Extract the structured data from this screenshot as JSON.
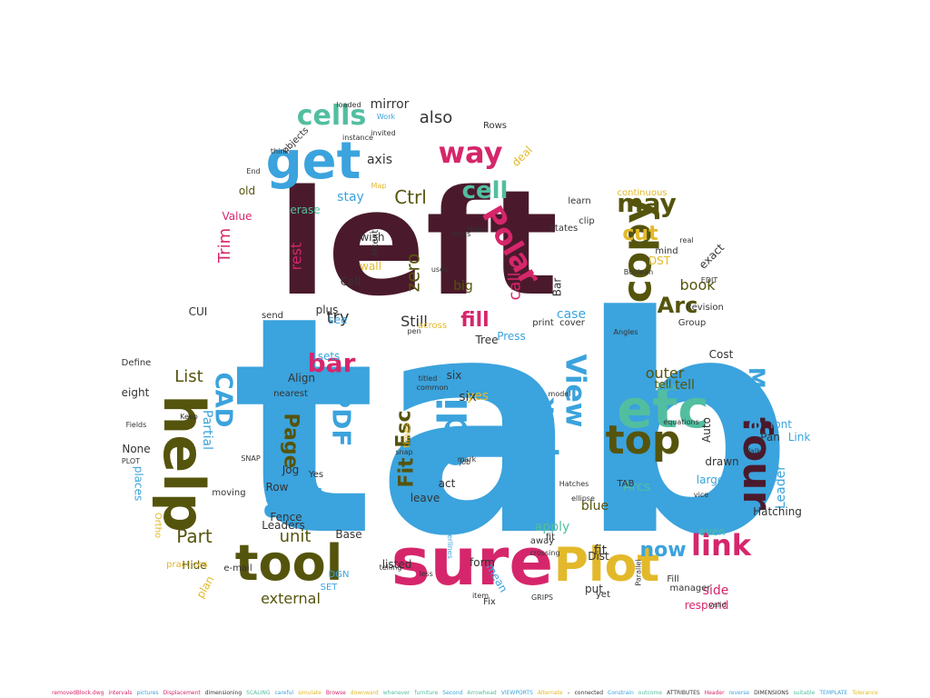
{
  "cloud": {
    "colors": {
      "maroon": "#4a1a2c",
      "blue": "#3ba3dd",
      "olive": "#55540d",
      "pink": "#d6266b",
      "teal": "#52bea0",
      "yellow": "#e3b92a",
      "dark": "#333333"
    },
    "words": [
      {
        "t": "tab",
        "c": "blue"
      },
      {
        "t": "left",
        "c": "maroon"
      },
      {
        "t": "sure",
        "c": "pink"
      },
      {
        "t": "Plot",
        "c": "yellow"
      },
      {
        "t": "help",
        "c": "olive"
      },
      {
        "t": "tool",
        "c": "olive"
      },
      {
        "t": "get",
        "c": "blue"
      },
      {
        "t": "etc",
        "c": "teal"
      },
      {
        "t": "top",
        "c": "olive"
      },
      {
        "t": "copy",
        "c": "olive"
      },
      {
        "t": "four",
        "c": "maroon"
      },
      {
        "t": "edit",
        "c": "blue"
      },
      {
        "t": "ask",
        "c": "blue"
      },
      {
        "t": "way",
        "c": "pink"
      },
      {
        "t": "cells",
        "c": "teal"
      },
      {
        "t": "View",
        "c": "blue"
      },
      {
        "t": "Polar",
        "c": "pink"
      },
      {
        "t": "pick",
        "c": "blue"
      },
      {
        "t": "PDF",
        "c": "blue"
      },
      {
        "t": "link",
        "c": "pink"
      },
      {
        "t": "may",
        "c": "olive"
      },
      {
        "t": "bar",
        "c": "pink"
      },
      {
        "t": "CAD",
        "c": "blue"
      },
      {
        "t": "Page",
        "c": "olive"
      },
      {
        "t": "cell",
        "c": "teal"
      },
      {
        "t": "Arc",
        "c": "olive"
      },
      {
        "t": "now",
        "c": "blue"
      },
      {
        "t": "Part",
        "c": "olive"
      },
      {
        "t": "Fit",
        "c": "olive"
      },
      {
        "t": "Esc",
        "c": "olive"
      },
      {
        "t": "cut",
        "c": "yellow"
      },
      {
        "t": "zero",
        "c": "olive"
      },
      {
        "t": "also",
        "c": "dark"
      },
      {
        "t": "Ctrl",
        "c": "olive"
      },
      {
        "t": "fill",
        "c": "pink"
      },
      {
        "t": "unit",
        "c": "olive"
      },
      {
        "t": "Move",
        "c": "blue"
      },
      {
        "t": "book",
        "c": "olive"
      },
      {
        "t": "List",
        "c": "olive"
      },
      {
        "t": "Trim",
        "c": "pink"
      },
      {
        "t": "Size",
        "c": "blue"
      },
      {
        "t": "mirror",
        "c": "dark"
      },
      {
        "t": "external",
        "c": "olive"
      },
      {
        "t": "outer",
        "c": "olive"
      },
      {
        "t": "side",
        "c": "pink"
      },
      {
        "t": "blue",
        "c": "olive"
      },
      {
        "t": "Arcs",
        "c": "teal"
      },
      {
        "t": "Leader",
        "c": "blue"
      },
      {
        "t": "Still",
        "c": "dark"
      },
      {
        "t": "rest",
        "c": "pink"
      },
      {
        "t": "call",
        "c": "pink"
      },
      {
        "t": "try",
        "c": "dark"
      },
      {
        "t": "Cell",
        "c": "dark"
      },
      {
        "t": "stay",
        "c": "blue"
      },
      {
        "t": "leave",
        "c": "dark"
      },
      {
        "t": "apply",
        "c": "teal"
      },
      {
        "t": "Base",
        "c": "dark"
      },
      {
        "t": "drawn",
        "c": "dark"
      },
      {
        "t": "Hide",
        "c": "olive"
      },
      {
        "t": "places",
        "c": "blue"
      },
      {
        "t": "Partial",
        "c": "blue"
      },
      {
        "t": "Row",
        "c": "dark"
      },
      {
        "t": "Box",
        "c": "teal"
      },
      {
        "t": "tell",
        "c": "olive"
      },
      {
        "t": "Cost",
        "c": "dark"
      },
      {
        "t": "case",
        "c": "blue"
      },
      {
        "t": "Auto",
        "c": "dark"
      },
      {
        "t": "big",
        "c": "olive"
      },
      {
        "t": "fit",
        "c": "dark"
      },
      {
        "t": "put",
        "c": "dark"
      },
      {
        "t": "mean",
        "c": "blue"
      },
      {
        "t": "six",
        "c": "dark"
      },
      {
        "t": "old",
        "c": "olive"
      },
      {
        "t": "erase",
        "c": "teal"
      },
      {
        "t": "wall",
        "c": "yellow"
      },
      {
        "t": "CUI",
        "c": "dark"
      },
      {
        "t": "DST",
        "c": "yellow"
      },
      {
        "t": "axis",
        "c": "dark"
      },
      {
        "t": "deal",
        "c": "yellow"
      },
      {
        "t": "eight",
        "c": "dark"
      },
      {
        "t": "None",
        "c": "dark"
      },
      {
        "t": "plan",
        "c": "yellow"
      },
      {
        "t": "Jog",
        "c": "dark"
      },
      {
        "t": "Fence",
        "c": "dark"
      },
      {
        "t": "Link",
        "c": "blue"
      },
      {
        "t": "Pan",
        "c": "dark"
      },
      {
        "t": "even",
        "c": "teal"
      },
      {
        "t": "Hatching",
        "c": "dark"
      },
      {
        "t": "respond",
        "c": "pink"
      },
      {
        "t": "Value",
        "c": "pink"
      },
      {
        "t": "Define",
        "c": "dark"
      },
      {
        "t": "Preview",
        "c": "blue"
      },
      {
        "t": "Leaders",
        "c": "dark"
      },
      {
        "t": "act",
        "c": "dark"
      },
      {
        "t": "listed",
        "c": "dark"
      },
      {
        "t": "form",
        "c": "dark"
      },
      {
        "t": "yes",
        "c": "yellow"
      },
      {
        "t": "sets",
        "c": "blue"
      },
      {
        "t": "see",
        "c": "blue"
      },
      {
        "t": "plus",
        "c": "dark"
      },
      {
        "t": "wish",
        "c": "dark"
      },
      {
        "t": "Align",
        "c": "dark"
      },
      {
        "t": "Yes",
        "c": "dark"
      },
      {
        "t": "moving",
        "c": "dark"
      },
      {
        "t": "font",
        "c": "blue"
      },
      {
        "t": "Group",
        "c": "dark"
      },
      {
        "t": "Revision",
        "c": "dark"
      },
      {
        "t": "Dist",
        "c": "dark"
      },
      {
        "t": "away",
        "c": "dark"
      },
      {
        "t": "Fix",
        "c": "dark"
      },
      {
        "t": "e-mail",
        "c": "dark"
      },
      {
        "t": "practices",
        "c": "yellow"
      },
      {
        "t": "send",
        "c": "dark"
      },
      {
        "t": "yet",
        "c": "dark"
      },
      {
        "t": "Bar",
        "c": "dark"
      },
      {
        "t": "nearest",
        "c": "dark"
      },
      {
        "t": "six",
        "c": "dark"
      },
      {
        "t": "tell",
        "c": "olive"
      },
      {
        "t": "Rows",
        "c": "dark"
      },
      {
        "t": "Fill",
        "c": "dark"
      },
      {
        "t": "TAB",
        "c": "dark"
      },
      {
        "t": "Tree",
        "c": "dark"
      },
      {
        "t": "Press",
        "c": "blue"
      },
      {
        "t": "large",
        "c": "blue"
      },
      {
        "t": "continuous",
        "c": "yellow"
      },
      {
        "t": "exact",
        "c": "dark"
      },
      {
        "t": "mind",
        "c": "dark"
      },
      {
        "t": "clip",
        "c": "dark"
      },
      {
        "t": "print",
        "c": "dark"
      },
      {
        "t": "across",
        "c": "yellow"
      },
      {
        "t": "cover",
        "c": "dark"
      },
      {
        "t": "DGN",
        "c": "blue"
      },
      {
        "t": "SET",
        "c": "blue"
      },
      {
        "t": "SNAP",
        "c": "dark"
      },
      {
        "t": "PLOT",
        "c": "dark"
      },
      {
        "t": "Ortho",
        "c": "yellow"
      },
      {
        "t": "vice",
        "c": "dark"
      },
      {
        "t": "manager",
        "c": "dark"
      },
      {
        "t": "valid",
        "c": "dark"
      },
      {
        "t": "fit",
        "c": "dark"
      },
      {
        "t": "Work",
        "c": "blue"
      },
      {
        "t": "loaded",
        "c": "dark"
      },
      {
        "t": "instance",
        "c": "dark"
      },
      {
        "t": "invited",
        "c": "dark"
      },
      {
        "t": "objects",
        "c": "dark"
      },
      {
        "t": "Notes",
        "c": "dark"
      },
      {
        "t": "Map",
        "c": "yellow"
      },
      {
        "t": "Mtext",
        "c": "dark"
      },
      {
        "t": "states",
        "c": "dark"
      },
      {
        "t": "learn",
        "c": "dark"
      },
      {
        "t": "Boolean",
        "c": "dark"
      },
      {
        "t": "GRIPS",
        "c": "dark"
      },
      {
        "t": "Hatches",
        "c": "dark"
      },
      {
        "t": "equations",
        "c": "dark"
      },
      {
        "t": "Angles",
        "c": "dark"
      },
      {
        "t": "Walk",
        "c": "dark"
      },
      {
        "t": "crossing",
        "c": "dark"
      },
      {
        "t": "telling",
        "c": "dark"
      },
      {
        "t": "ellipse",
        "c": "dark"
      },
      {
        "t": "model",
        "c": "dark"
      },
      {
        "t": "titled",
        "c": "dark"
      },
      {
        "t": "common",
        "c": "dark"
      },
      {
        "t": "times",
        "c": "yellow"
      },
      {
        "t": "snap",
        "c": "dark"
      },
      {
        "t": "job",
        "c": "dark"
      },
      {
        "t": "mark",
        "c": "dark"
      },
      {
        "t": "icons",
        "c": "dark"
      },
      {
        "t": "uses",
        "c": "dark"
      },
      {
        "t": "pen",
        "c": "dark"
      },
      {
        "t": "Keep",
        "c": "dark"
      },
      {
        "t": "Centerlines",
        "c": "blue"
      },
      {
        "t": "item",
        "c": "dark"
      },
      {
        "t": "less",
        "c": "dark"
      },
      {
        "t": "Parallel",
        "c": "dark"
      },
      {
        "t": "EDIT",
        "c": "dark"
      },
      {
        "t": "real",
        "c": "dark"
      },
      {
        "t": "Fields",
        "c": "dark"
      },
      {
        "t": "think",
        "c": "dark"
      },
      {
        "t": "End",
        "c": "dark"
      }
    ]
  },
  "footer_words": [
    {
      "t": "removedBlock.dwg",
      "c": "pink"
    },
    {
      "t": "intervals",
      "c": "pink"
    },
    {
      "t": "pictures",
      "c": "blue"
    },
    {
      "t": "Displacement",
      "c": "pink"
    },
    {
      "t": "dimensioning",
      "c": "dark"
    },
    {
      "t": "SCALING",
      "c": "teal"
    },
    {
      "t": "careful",
      "c": "blue"
    },
    {
      "t": "simulate",
      "c": "yellow"
    },
    {
      "t": "Browse",
      "c": "pink"
    },
    {
      "t": "downward",
      "c": "yellow"
    },
    {
      "t": "whenever",
      "c": "teal"
    },
    {
      "t": "furniture",
      "c": "teal"
    },
    {
      "t": "Second",
      "c": "blue"
    },
    {
      "t": "Arrowhead",
      "c": "teal"
    },
    {
      "t": "VIEWPORTS",
      "c": "blue"
    },
    {
      "t": "Alternate",
      "c": "yellow"
    },
    {
      "t": "–",
      "c": "dark"
    },
    {
      "t": "connected",
      "c": "dark"
    },
    {
      "t": "Constrain",
      "c": "blue"
    },
    {
      "t": "outcome",
      "c": "teal"
    },
    {
      "t": "ATTRIBUTES",
      "c": "dark"
    },
    {
      "t": "Header",
      "c": "pink"
    },
    {
      "t": "reverse",
      "c": "blue"
    },
    {
      "t": "DIMENSIONS",
      "c": "dark"
    },
    {
      "t": "suitable",
      "c": "teal"
    },
    {
      "t": "TEMPLATE",
      "c": "blue"
    },
    {
      "t": "Tolerance",
      "c": "yellow"
    }
  ]
}
